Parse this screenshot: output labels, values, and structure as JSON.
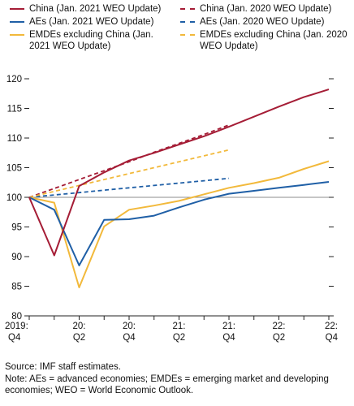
{
  "chart_data": {
    "type": "line",
    "x": [
      "2019:Q4",
      "20:Q1",
      "20:Q2",
      "20:Q3",
      "20:Q4",
      "21:Q1",
      "21:Q2",
      "21:Q3",
      "21:Q4",
      "22:Q1",
      "22:Q2",
      "22:Q3",
      "22:Q4"
    ],
    "x_tick_labels": [
      {
        "top": "2019:",
        "bottom": "Q4"
      },
      {
        "top": "20:",
        "bottom": "Q2"
      },
      {
        "top": "20:",
        "bottom": "Q4"
      },
      {
        "top": "21:",
        "bottom": "Q2"
      },
      {
        "top": "21:",
        "bottom": "Q4"
      },
      {
        "top": "22:",
        "bottom": "Q2"
      },
      {
        "top": "22:",
        "bottom": "Q4"
      }
    ],
    "ylim": [
      80,
      120
    ],
    "y_ticks": [
      80,
      85,
      90,
      95,
      100,
      105,
      110,
      115,
      120
    ],
    "reference_line": 100,
    "legend_position": "top",
    "series": [
      {
        "name": "China (Jan. 2021 WEO Update)",
        "color": "#a51d36",
        "dash": false,
        "values": [
          100,
          90.2,
          101.9,
          104.2,
          106.2,
          107.5,
          108.9,
          110.3,
          111.9,
          113.6,
          115.3,
          116.9,
          118.2
        ]
      },
      {
        "name": "China (Jan. 2020 WEO Update)",
        "color": "#a51d36",
        "dash": true,
        "values": [
          100,
          101.5,
          103.0,
          104.5,
          106.0,
          107.6,
          109.1,
          110.6,
          112.2,
          null,
          null,
          null,
          null
        ]
      },
      {
        "name": "AEs (Jan. 2021 WEO Update)",
        "color": "#1f5fa6",
        "dash": false,
        "values": [
          100,
          97.9,
          88.5,
          96.2,
          96.3,
          96.9,
          98.3,
          99.6,
          100.6,
          101.1,
          101.6,
          102.1,
          102.6
        ]
      },
      {
        "name": "AEs (Jan. 2020 WEO Update)",
        "color": "#1f5fa6",
        "dash": true,
        "values": [
          100,
          100.4,
          100.8,
          101.2,
          101.6,
          102.0,
          102.4,
          102.8,
          103.2,
          null,
          null,
          null,
          null
        ]
      },
      {
        "name": "EMDEs excluding China (Jan. 2021 WEO Update)",
        "color": "#f2b93b",
        "dash": false,
        "values": [
          100,
          99.1,
          84.8,
          95.1,
          97.9,
          98.6,
          99.4,
          100.5,
          101.6,
          102.4,
          103.3,
          104.8,
          106.1
        ]
      },
      {
        "name": "EMDEs excluding China (Jan. 2020 WEO Update)",
        "color": "#f2b93b",
        "dash": true,
        "values": [
          100,
          101.0,
          102.0,
          103.0,
          104.0,
          105.0,
          106.0,
          107.0,
          108.0,
          null,
          null,
          null,
          null
        ]
      }
    ]
  },
  "notes": {
    "source": "Source: IMF staff estimates.",
    "note": "Note: AEs = advanced economies; EMDEs = emerging market and developing economies; WEO = World Economic Outlook."
  }
}
